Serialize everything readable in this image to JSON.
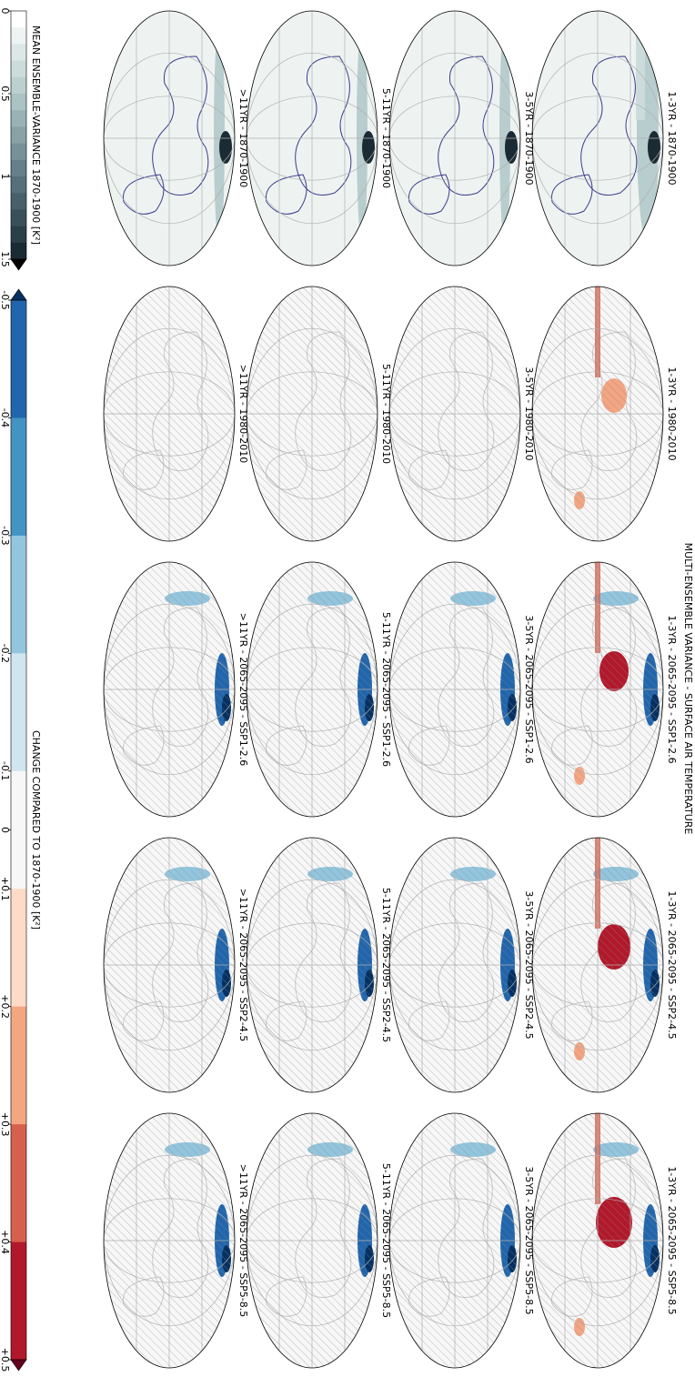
{
  "title": "MULTI-ENSEMBLE VARIANCE - SURFACE AIR TEMPERATURE",
  "panels": [
    [
      "1-3YR - 1870-1900",
      "3-5YR - 1870-1900",
      "5-11YR - 1870-1900",
      ">11YR - 1870-1900"
    ],
    [
      "1-3YR - 1980-2010",
      "3-5YR - 1980-2010",
      "5-11YR - 1980-2010",
      ">11YR - 1980-2010"
    ],
    [
      "1-3YR - 2065-2095 - SSP1-2.6",
      "3-5YR - 2065-2095 - SSP1-2.6",
      "5-11YR - 2065-2095 - SSP1-2.6",
      ">11YR - 2065-2095 - SSP1-2.6"
    ],
    [
      "1-3YR - 2065-2095 - SSP2-4.5",
      "3-5YR - 2065-2095 - SSP2-4.5",
      "5-11YR - 2065-2095 - SSP2-4.5",
      ">11YR - 2065-2095 - SSP2-4.5"
    ],
    [
      "1-3YR - 2065-2095 - SSP5-8.5",
      "3-5YR - 2065-2095 - SSP5-8.5",
      "5-11YR - 2065-2095 - SSP5-8.5",
      ">11YR - 2065-2095 - SSP5-8.5"
    ]
  ],
  "variance_colorbar": {
    "label": "MEAN ENSEMBLE-VARIANCE 1870-1900 [K²]",
    "levels": [
      0,
      0.1,
      0.2,
      0.3,
      0.4,
      0.5,
      0.6,
      0.7,
      0.8,
      0.9,
      1,
      1.1,
      1.2,
      1.3,
      1.4,
      1.5
    ],
    "colors": [
      "#ffffff",
      "#eef3f3",
      "#dde7e7",
      "#ccdcdb",
      "#bbd0cf",
      "#aac3c3",
      "#99b3b4",
      "#88a2a6",
      "#779198",
      "#65808a",
      "#56707b",
      "#47606a",
      "#38505a",
      "#2a3f48",
      "#1b2b33"
    ],
    "extend_max_color": "#000000",
    "ticks": [
      0,
      0.5,
      1,
      1.5
    ]
  },
  "change_colorbar": {
    "label": "CHANGE COMPARED TO 1870-1900 [K²]",
    "levels": [
      -0.5,
      -0.4,
      -0.3,
      -0.2,
      -0.1,
      0.1,
      0.2,
      0.3,
      0.4,
      0.5
    ],
    "colors": [
      "#2166ac",
      "#4393c3",
      "#92c5de",
      "#d1e5f0",
      "#f7f7f7",
      "#fddbc7",
      "#f4a582",
      "#d6604d",
      "#b2182b"
    ],
    "extend_min_color": "#053061",
    "extend_max_color": "#67001f",
    "ticks": [
      -0.5,
      -0.4,
      -0.3,
      -0.2,
      -0.1,
      0,
      {
        "value": 0.1,
        "label": "+0.1"
      },
      {
        "value": 0.2,
        "label": "+0.2"
      },
      {
        "value": 0.3,
        "label": "+0.3"
      },
      {
        "value": 0.4,
        "label": "+0.4"
      },
      {
        "value": 0.5,
        "label": "+0.5"
      }
    ]
  }
}
